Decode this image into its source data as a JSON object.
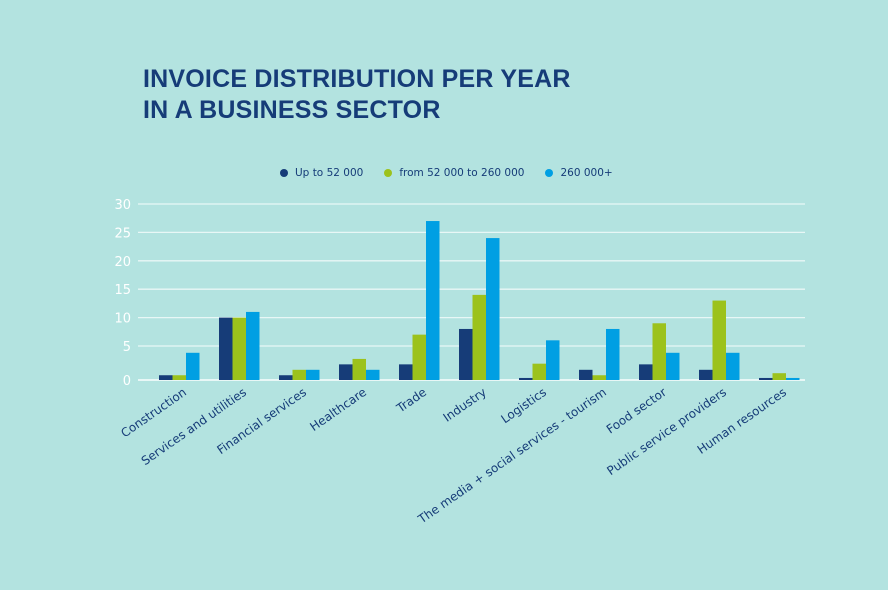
{
  "title_lines": [
    "INVOICE DISTRIBUTION PER YEAR",
    "IN A BUSINESS SECTOR"
  ],
  "colors": {
    "background": "#b3e3e0",
    "series": [
      "#163c78",
      "#9cc21c",
      "#009fe3"
    ],
    "grid": "#e8f7f6",
    "tick": "#ffffff",
    "label": "#163c78"
  },
  "chart_data": {
    "type": "bar",
    "title": "INVOICE DISTRIBUTION PER YEAR IN A BUSINESS SECTOR",
    "xlabel": "",
    "ylabel": "",
    "ylim": [
      0,
      30
    ],
    "yticks": [
      0,
      5,
      10,
      15,
      20,
      25,
      30
    ],
    "grid": true,
    "legend_position": "top-center",
    "categories": [
      "Construction",
      "Services and utilities",
      "Financial services",
      "Healthcare",
      "Trade",
      "Industry",
      "Logistics",
      "The media + social services - tourism",
      "Food sector",
      "Public service providers",
      "Human resources"
    ],
    "series": [
      {
        "name": "Up to 52 000",
        "values": [
          0.7,
          10,
          0.7,
          2.3,
          2.3,
          8,
          0.3,
          1.5,
          2.3,
          1.5,
          0.3
        ]
      },
      {
        "name": "from 52 000 to 260 000",
        "values": [
          0.7,
          10,
          1.5,
          3.1,
          7,
          14,
          2.4,
          0.7,
          9,
          13,
          1
        ]
      },
      {
        "name": "260 000+",
        "values": [
          4,
          11,
          1.5,
          1.5,
          27,
          24,
          6,
          8,
          4,
          4,
          0.3
        ]
      }
    ]
  }
}
